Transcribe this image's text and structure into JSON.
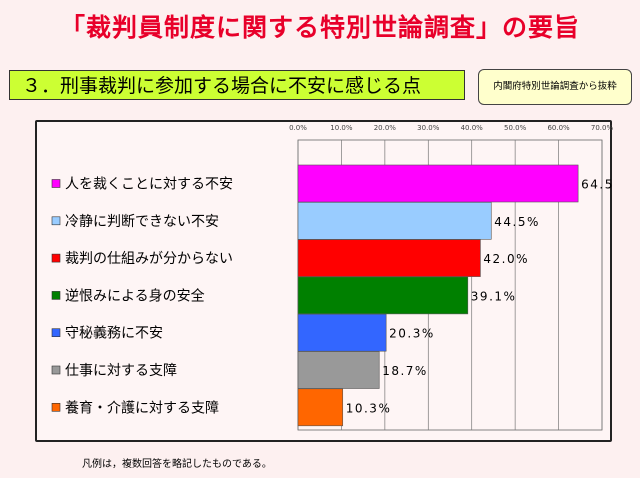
{
  "header": {
    "title": "「裁判員制度に関する特別世論調査」の要旨",
    "subtitle": "３．刑事裁判に参加する場合に不安に感じる点",
    "source": "内閣府特別世論調査から抜粋"
  },
  "footnote": "凡例は，複数回答を略記したものである。",
  "chart_data": {
    "type": "bar",
    "orientation": "horizontal",
    "categories": [
      "人を裁くことに対する不安",
      "冷静に判断できない不安",
      "裁判の仕組みが分からない",
      "逆恨みによる身の安全",
      "守秘義務に不安",
      "仕事に対する支障",
      "養育・介護に対する支障"
    ],
    "values": [
      64.5,
      44.5,
      42.0,
      39.1,
      20.3,
      18.7,
      10.3
    ],
    "value_labels": [
      "64.5",
      "44.5%",
      "42.0%",
      "39.1%",
      "20.3%",
      "18.7%",
      "10.3%"
    ],
    "colors": [
      "#ff00ff",
      "#99ccff",
      "#ff0000",
      "#008000",
      "#3366ff",
      "#999999",
      "#ff6600"
    ],
    "xlim": [
      0,
      70
    ],
    "xticks": [
      "0.0%",
      "10.0%",
      "20.0%",
      "30.0%",
      "40.0%",
      "50.0%",
      "60.0%",
      "70.0%"
    ],
    "grid": true
  }
}
